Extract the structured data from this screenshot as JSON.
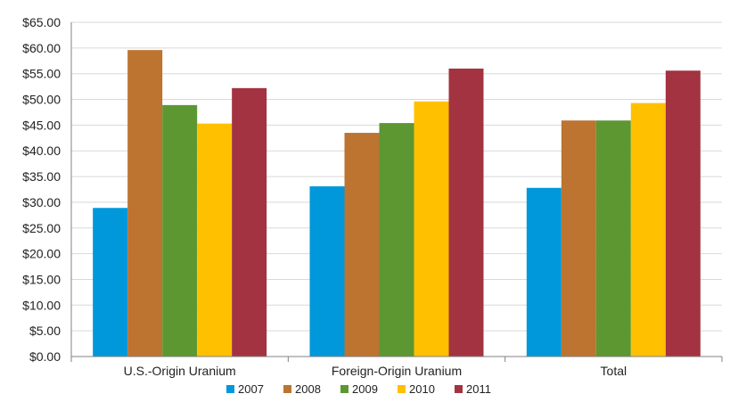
{
  "chart_data": {
    "type": "bar",
    "title": "",
    "xlabel": "",
    "ylabel": "",
    "categories": [
      "U.S.-Origin Uranium",
      "Foreign-Origin Uranium",
      "Total"
    ],
    "series": [
      {
        "name": "2007",
        "color": "#0098DA",
        "values": [
          28.9,
          33.1,
          32.8
        ]
      },
      {
        "name": "2008",
        "color": "#BC7430",
        "values": [
          59.6,
          43.5,
          45.9
        ]
      },
      {
        "name": "2009",
        "color": "#5D9732",
        "values": [
          48.9,
          45.4,
          45.9
        ]
      },
      {
        "name": "2010",
        "color": "#FFC000",
        "values": [
          45.3,
          49.6,
          49.3
        ]
      },
      {
        "name": "2011",
        "color": "#A33340",
        "values": [
          52.2,
          56.0,
          55.6
        ]
      }
    ],
    "ylim": [
      0,
      65
    ],
    "ytick_step": 5,
    "ytick_labels": [
      "$0.00",
      "$5.00",
      "$10.00",
      "$15.00",
      "$20.00",
      "$25.00",
      "$30.00",
      "$35.00",
      "$40.00",
      "$45.00",
      "$50.00",
      "$55.00",
      "$60.00",
      "$65.00"
    ],
    "grid": true,
    "legend_position": "bottom"
  }
}
